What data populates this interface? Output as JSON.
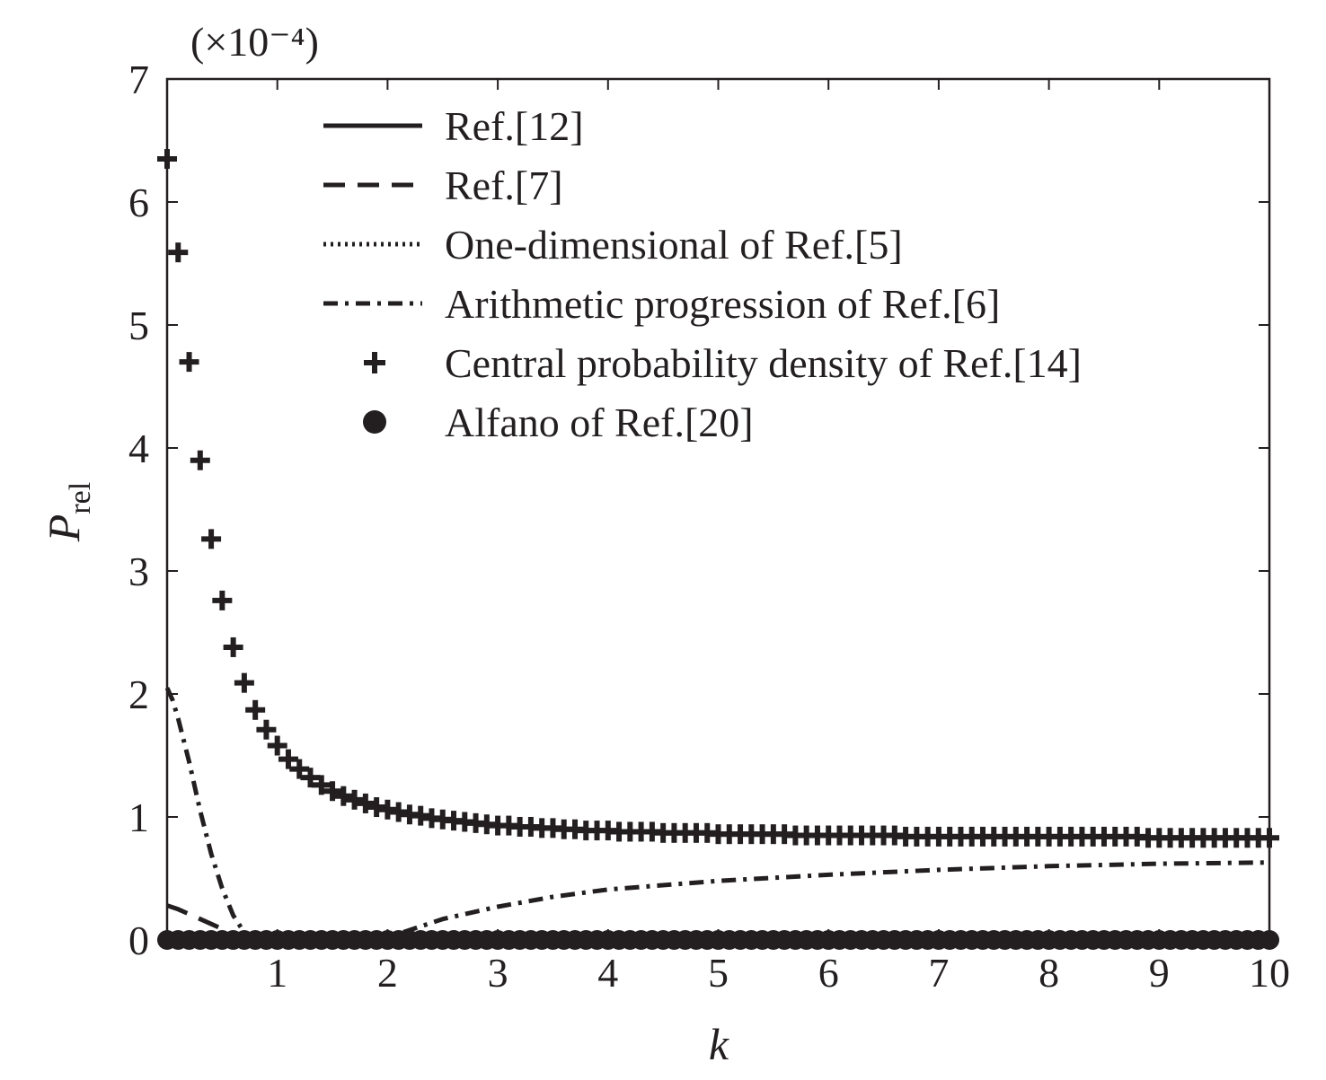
{
  "chart_data": {
    "type": "line",
    "title": "",
    "scale_label": "(×10⁻⁴)",
    "xlabel": "k",
    "ylabel": {
      "main": "P",
      "sub": "rel"
    },
    "xlim": [
      0.0,
      10.0
    ],
    "ylim": [
      0,
      7
    ],
    "xticks": [
      1,
      2,
      3,
      4,
      5,
      6,
      7,
      8,
      9,
      10
    ],
    "yticks": [
      0,
      1,
      2,
      3,
      4,
      5,
      6,
      7
    ],
    "grid": false,
    "legend_position": "top-right",
    "series": [
      {
        "name": "Ref.[12]",
        "style": "solid",
        "x": [
          0.0,
          10.0
        ],
        "y": [
          0.0,
          0.0
        ]
      },
      {
        "name": "Ref.[7]",
        "style": "dashed",
        "x": [
          0.0,
          0.1,
          0.2,
          0.3,
          0.4,
          0.5,
          0.6,
          0.7,
          0.8
        ],
        "y": [
          0.28,
          0.25,
          0.21,
          0.17,
          0.13,
          0.09,
          0.05,
          0.02,
          0.0
        ]
      },
      {
        "name": "One-dimensional of Ref.[5]",
        "style": "dotted",
        "x": [
          0.0,
          10.0
        ],
        "y": [
          0.0,
          0.0
        ]
      },
      {
        "name": "Arithmetic progression of Ref.[6]",
        "style": "dashdot",
        "x": [
          0.0,
          0.05,
          0.1,
          0.2,
          0.3,
          0.4,
          0.5,
          0.6,
          0.7,
          0.75,
          0.8,
          1.0,
          1.5,
          2.0,
          2.5,
          3.0,
          3.5,
          4.0,
          5.0,
          6.0,
          7.0,
          8.0,
          9.0,
          10.0
        ],
        "y": [
          2.05,
          1.95,
          1.8,
          1.45,
          1.05,
          0.7,
          0.42,
          0.2,
          0.06,
          0.02,
          0.0,
          0.0,
          0.0,
          0.02,
          0.17,
          0.27,
          0.35,
          0.41,
          0.48,
          0.53,
          0.57,
          0.6,
          0.62,
          0.63
        ]
      },
      {
        "name": "Central probability density of Ref.[14]",
        "style": "plus-markers",
        "x": [
          0.0,
          0.1,
          0.2,
          0.3,
          0.4,
          0.5,
          0.6,
          0.7,
          0.8,
          0.9,
          1.0,
          1.1,
          1.2,
          1.3,
          1.4,
          1.5,
          1.6,
          1.7,
          1.8,
          1.9,
          2.0,
          2.1,
          2.2,
          2.3,
          2.4,
          2.5,
          2.6,
          2.7,
          2.8,
          2.9,
          3.0,
          3.1,
          3.2,
          3.3,
          3.4,
          3.5,
          3.6,
          3.7,
          3.8,
          3.9,
          4.0,
          4.1,
          4.2,
          4.3,
          4.4,
          4.5,
          4.6,
          4.7,
          4.8,
          4.9,
          5.0,
          5.1,
          5.2,
          5.3,
          5.4,
          5.5,
          5.6,
          5.7,
          5.8,
          5.9,
          6.0,
          6.1,
          6.2,
          6.3,
          6.4,
          6.5,
          6.6,
          6.7,
          6.8,
          6.9,
          7.0,
          7.1,
          7.2,
          7.3,
          7.4,
          7.5,
          7.6,
          7.7,
          7.8,
          7.9,
          8.0,
          8.1,
          8.2,
          8.3,
          8.4,
          8.5,
          8.6,
          8.7,
          8.8,
          8.9,
          9.0,
          9.1,
          9.2,
          9.3,
          9.4,
          9.5,
          9.6,
          9.7,
          9.8,
          9.9,
          10.0
        ],
        "y": [
          6.35,
          5.59,
          4.7,
          3.9,
          3.26,
          2.76,
          2.38,
          2.09,
          1.87,
          1.71,
          1.58,
          1.47,
          1.39,
          1.32,
          1.26,
          1.21,
          1.17,
          1.14,
          1.11,
          1.08,
          1.06,
          1.04,
          1.02,
          1.01,
          0.99,
          0.98,
          0.97,
          0.96,
          0.95,
          0.94,
          0.93,
          0.93,
          0.92,
          0.92,
          0.91,
          0.91,
          0.9,
          0.9,
          0.89,
          0.89,
          0.89,
          0.88,
          0.88,
          0.88,
          0.88,
          0.87,
          0.87,
          0.87,
          0.87,
          0.87,
          0.86,
          0.86,
          0.86,
          0.86,
          0.86,
          0.86,
          0.86,
          0.85,
          0.85,
          0.85,
          0.85,
          0.85,
          0.85,
          0.85,
          0.85,
          0.85,
          0.85,
          0.84,
          0.84,
          0.84,
          0.84,
          0.84,
          0.84,
          0.84,
          0.84,
          0.84,
          0.84,
          0.84,
          0.84,
          0.84,
          0.84,
          0.84,
          0.84,
          0.84,
          0.84,
          0.84,
          0.84,
          0.84,
          0.84,
          0.83,
          0.83,
          0.83,
          0.83,
          0.83,
          0.83,
          0.83,
          0.83,
          0.83,
          0.83,
          0.83,
          0.83
        ]
      },
      {
        "name": "Alfano of Ref.[20]",
        "style": "circle-markers",
        "x": [
          0.0,
          0.1,
          0.2,
          0.3,
          0.4,
          0.5,
          0.6,
          0.7,
          0.8,
          0.9,
          1.0,
          1.1,
          1.2,
          1.3,
          1.4,
          1.5,
          1.6,
          1.7,
          1.8,
          1.9,
          2.0,
          2.1,
          2.2,
          2.3,
          2.4,
          2.5,
          2.6,
          2.7,
          2.8,
          2.9,
          3.0,
          3.1,
          3.2,
          3.3,
          3.4,
          3.5,
          3.6,
          3.7,
          3.8,
          3.9,
          4.0,
          4.1,
          4.2,
          4.3,
          4.4,
          4.5,
          4.6,
          4.7,
          4.8,
          4.9,
          5.0,
          5.1,
          5.2,
          5.3,
          5.4,
          5.5,
          5.6,
          5.7,
          5.8,
          5.9,
          6.0,
          6.1,
          6.2,
          6.3,
          6.4,
          6.5,
          6.6,
          6.7,
          6.8,
          6.9,
          7.0,
          7.1,
          7.2,
          7.3,
          7.4,
          7.5,
          7.6,
          7.7,
          7.8,
          7.9,
          8.0,
          8.1,
          8.2,
          8.3,
          8.4,
          8.5,
          8.6,
          8.7,
          8.8,
          8.9,
          9.0,
          9.1,
          9.2,
          9.3,
          9.4,
          9.5,
          9.6,
          9.7,
          9.8,
          9.9,
          10.0
        ],
        "y": [
          0.0,
          0.0,
          0.0,
          0.0,
          0.0,
          0.0,
          0.0,
          0.0,
          0.0,
          0.0,
          0.0,
          0.0,
          0.0,
          0.0,
          0.0,
          0.0,
          0.0,
          0.0,
          0.0,
          0.0,
          0.0,
          0.0,
          0.0,
          0.0,
          0.0,
          0.0,
          0.0,
          0.0,
          0.0,
          0.0,
          0.0,
          0.0,
          0.0,
          0.0,
          0.0,
          0.0,
          0.0,
          0.0,
          0.0,
          0.0,
          0.0,
          0.0,
          0.0,
          0.0,
          0.0,
          0.0,
          0.0,
          0.0,
          0.0,
          0.0,
          0.0,
          0.0,
          0.0,
          0.0,
          0.0,
          0.0,
          0.0,
          0.0,
          0.0,
          0.0,
          0.0,
          0.0,
          0.0,
          0.0,
          0.0,
          0.0,
          0.0,
          0.0,
          0.0,
          0.0,
          0.0,
          0.0,
          0.0,
          0.0,
          0.0,
          0.0,
          0.0,
          0.0,
          0.0,
          0.0,
          0.0,
          0.0,
          0.0,
          0.0,
          0.0,
          0.0,
          0.0,
          0.0,
          0.0,
          0.0,
          0.0,
          0.0,
          0.0,
          0.0,
          0.0,
          0.0,
          0.0,
          0.0,
          0.0,
          0.0,
          0.0
        ]
      }
    ],
    "colors": {
      "ink": "#231f20",
      "background": "#ffffff"
    }
  }
}
